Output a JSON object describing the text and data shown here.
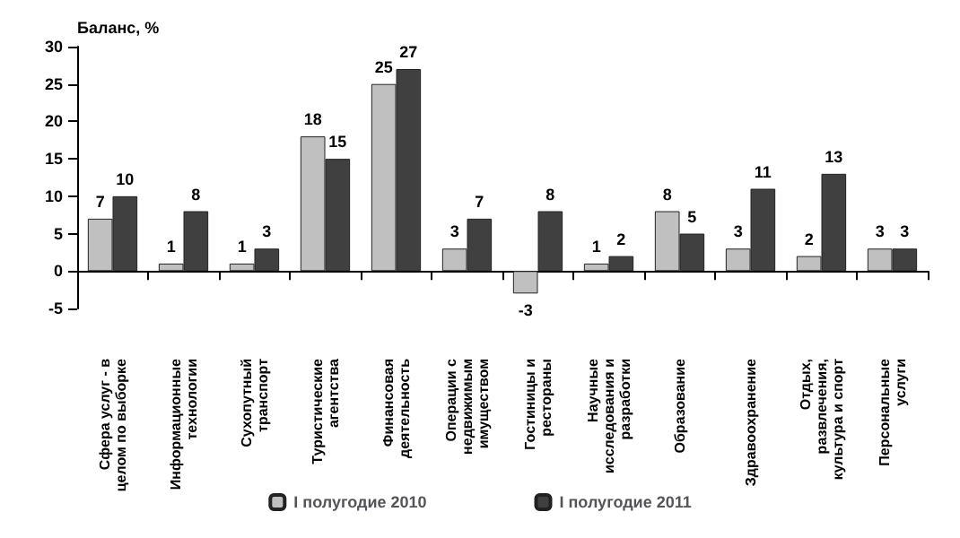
{
  "chart_data": {
    "type": "bar",
    "ylabel": "Баланс, %",
    "categories": [
      "Сфера услуг - в целом по выборке",
      "Информационные технологии",
      "Сухопутный транспорт",
      "Туристические агентства",
      "Финансовая деятельность",
      "Операции с недвижимым имуществом",
      "Гостиницы и рестораны",
      "Научные исследования и разработки",
      "Образование",
      "Здравоохранение",
      "Отдых, развлечения, культура и спорт",
      "Персональные услуги"
    ],
    "series": [
      {
        "name": "I полугодие 2010",
        "color": "#c0c0c0",
        "values": [
          7,
          1,
          1,
          18,
          25,
          3,
          -3,
          1,
          8,
          3,
          2,
          3
        ]
      },
      {
        "name": "I полугодие 2011",
        "color": "#404040",
        "values": [
          10,
          8,
          3,
          15,
          27,
          7,
          8,
          2,
          5,
          11,
          13,
          3
        ]
      }
    ],
    "ylim": [
      -5,
      30
    ],
    "yticks": [
      -5,
      0,
      5,
      10,
      15,
      20,
      25,
      30
    ],
    "data_labels": true,
    "legend": "bottom"
  }
}
